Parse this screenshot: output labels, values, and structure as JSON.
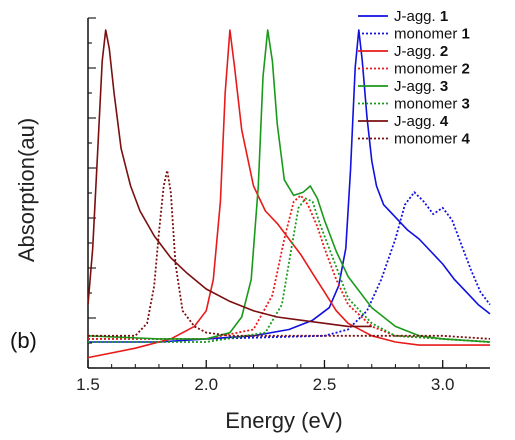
{
  "panel_label": "(b)",
  "chart_data": {
    "type": "line",
    "title": "",
    "xlabel": "Energy (eV)",
    "ylabel": "Absorption(au)",
    "xlim": [
      1.5,
      3.2
    ],
    "ylim": [
      0,
      1.0
    ],
    "x_ticks": [
      1.5,
      2.0,
      2.5,
      3.0
    ],
    "x_tick_labels": [
      "1.5",
      "2.0",
      "2.5",
      "3.0"
    ],
    "y_tick_labels": false,
    "grid": false,
    "legend_position": "top-right",
    "series": [
      {
        "name": "J-agg. 1",
        "label": "J-agg. ",
        "num": "1",
        "color": "#1010e0",
        "style": "solid",
        "x": [
          1.5,
          1.8,
          2.0,
          2.2,
          2.35,
          2.45,
          2.52,
          2.56,
          2.59,
          2.61,
          2.63,
          2.645,
          2.66,
          2.68,
          2.7,
          2.72,
          2.75,
          2.8,
          2.85,
          2.9,
          2.95,
          3.0,
          3.05,
          3.1,
          3.15,
          3.2
        ],
        "y": [
          0.0,
          0.0,
          0.01,
          0.02,
          0.04,
          0.07,
          0.11,
          0.18,
          0.3,
          0.55,
          0.88,
          1.0,
          0.9,
          0.72,
          0.58,
          0.5,
          0.44,
          0.4,
          0.36,
          0.33,
          0.29,
          0.25,
          0.2,
          0.16,
          0.12,
          0.09
        ]
      },
      {
        "name": "monomer 1",
        "label": "monomer ",
        "num": "1",
        "color": "#1010e0",
        "style": "dotted",
        "x": [
          1.5,
          2.0,
          2.5,
          2.6,
          2.68,
          2.74,
          2.8,
          2.84,
          2.88,
          2.92,
          2.96,
          3.0,
          3.04,
          3.08,
          3.12,
          3.16,
          3.2
        ],
        "y": [
          0.01,
          0.01,
          0.02,
          0.04,
          0.1,
          0.2,
          0.33,
          0.44,
          0.48,
          0.45,
          0.41,
          0.43,
          0.39,
          0.31,
          0.23,
          0.16,
          0.12
        ]
      },
      {
        "name": "J-agg. 2",
        "label": "J-agg. ",
        "num": "2",
        "color": "#e81a1a",
        "style": "solid",
        "x": [
          1.5,
          1.7,
          1.85,
          1.95,
          2.0,
          2.03,
          2.06,
          2.08,
          2.1,
          2.12,
          2.15,
          2.2,
          2.25,
          2.3,
          2.35,
          2.4,
          2.45,
          2.5,
          2.55,
          2.6,
          2.7,
          2.8,
          2.9,
          3.0,
          3.2
        ],
        "y": [
          -0.05,
          -0.02,
          0.01,
          0.05,
          0.1,
          0.2,
          0.45,
          0.8,
          1.0,
          0.88,
          0.68,
          0.5,
          0.42,
          0.38,
          0.33,
          0.28,
          0.22,
          0.16,
          0.1,
          0.06,
          0.02,
          0.0,
          -0.01,
          -0.01,
          -0.01
        ]
      },
      {
        "name": "monomer 2",
        "label": "monomer ",
        "num": "2",
        "color": "#e81a1a",
        "style": "dotted",
        "x": [
          1.5,
          2.0,
          2.2,
          2.28,
          2.33,
          2.37,
          2.4,
          2.43,
          2.47,
          2.5,
          2.55,
          2.6,
          2.7,
          2.8,
          3.0,
          3.2
        ],
        "y": [
          0.01,
          0.01,
          0.04,
          0.15,
          0.33,
          0.45,
          0.47,
          0.44,
          0.37,
          0.3,
          0.2,
          0.12,
          0.05,
          0.02,
          0.01,
          0.0
        ]
      },
      {
        "name": "J-agg. 3",
        "label": "J-agg. ",
        "num": "3",
        "color": "#1a9a1a",
        "style": "solid",
        "x": [
          1.5,
          1.8,
          2.0,
          2.1,
          2.15,
          2.19,
          2.22,
          2.24,
          2.26,
          2.28,
          2.3,
          2.33,
          2.37,
          2.41,
          2.44,
          2.47,
          2.5,
          2.55,
          2.6,
          2.7,
          2.8,
          2.9,
          3.0,
          3.2
        ],
        "y": [
          0.02,
          0.01,
          0.01,
          0.03,
          0.08,
          0.2,
          0.5,
          0.85,
          1.0,
          0.9,
          0.7,
          0.52,
          0.47,
          0.48,
          0.5,
          0.46,
          0.39,
          0.29,
          0.21,
          0.11,
          0.05,
          0.02,
          0.01,
          0.0
        ]
      },
      {
        "name": "monomer 3",
        "label": "monomer ",
        "num": "3",
        "color": "#1a9a1a",
        "style": "dotted",
        "x": [
          1.5,
          2.0,
          2.25,
          2.32,
          2.36,
          2.39,
          2.42,
          2.45,
          2.48,
          2.52,
          2.56,
          2.6,
          2.7,
          2.8,
          3.0,
          3.2
        ],
        "y": [
          0.0,
          0.0,
          0.03,
          0.12,
          0.3,
          0.43,
          0.46,
          0.45,
          0.38,
          0.3,
          0.22,
          0.14,
          0.06,
          0.02,
          0.01,
          0.0
        ]
      },
      {
        "name": "J-agg. 4",
        "label": "J-agg. ",
        "num": "4",
        "color": "#7a0f0f",
        "style": "solid",
        "x": [
          1.5,
          1.52,
          1.54,
          1.56,
          1.575,
          1.59,
          1.61,
          1.64,
          1.68,
          1.72,
          1.78,
          1.85,
          1.92,
          2.0,
          2.1,
          2.2,
          2.3,
          2.4,
          2.5,
          2.6,
          2.7
        ],
        "y": [
          0.12,
          0.3,
          0.6,
          0.9,
          1.0,
          0.94,
          0.8,
          0.62,
          0.5,
          0.42,
          0.34,
          0.27,
          0.22,
          0.17,
          0.13,
          0.1,
          0.08,
          0.07,
          0.06,
          0.05,
          0.05
        ]
      },
      {
        "name": "monomer 4",
        "label": "monomer ",
        "num": "4",
        "color": "#7a0f0f",
        "style": "dotted",
        "x": [
          1.5,
          1.7,
          1.75,
          1.78,
          1.8,
          1.82,
          1.835,
          1.85,
          1.87,
          1.9,
          1.95,
          2.0,
          2.1,
          2.3,
          2.6,
          3.0,
          3.2
        ],
        "y": [
          0.02,
          0.02,
          0.06,
          0.18,
          0.35,
          0.5,
          0.55,
          0.48,
          0.25,
          0.1,
          0.05,
          0.03,
          0.02,
          0.02,
          0.02,
          0.02,
          0.01
        ]
      }
    ]
  }
}
